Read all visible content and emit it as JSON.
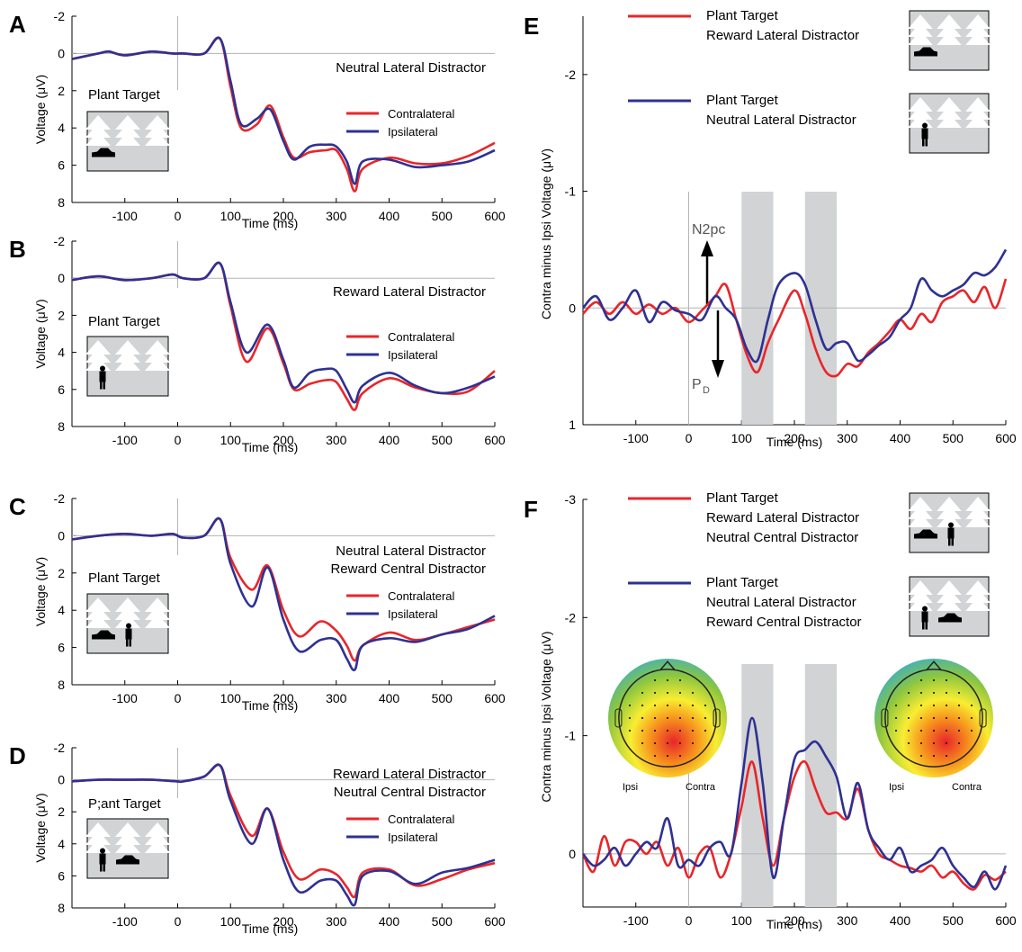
{
  "colors": {
    "contra": "#e8262a",
    "ipsi": "#2e3192",
    "shade": "#d1d3d4",
    "scene": "#d1d3d4",
    "zero": "#b3b3b3"
  },
  "left_panels": [
    {
      "letter": "A",
      "condition": [
        "Neutral Lateral Distractor"
      ],
      "target_label": "Plant Target",
      "legend": [
        "Contralateral",
        "Ipsilateral"
      ],
      "scene": "car",
      "xlabel": "Time (ms)",
      "ylabel": "Voltage (μV)",
      "yticks": [
        "-2",
        "0",
        "2",
        "4",
        "6",
        "8"
      ],
      "xticks": [
        "-100",
        "0",
        "100",
        "200",
        "300",
        "400",
        "500",
        "600"
      ]
    },
    {
      "letter": "B",
      "condition": [
        "Reward Lateral Distractor"
      ],
      "target_label": "Plant Target",
      "legend": [
        "Contralateral",
        "Ipsilateral"
      ],
      "scene": "person",
      "xlabel": "Time (ms)",
      "ylabel": "Voltage (μV)",
      "yticks": [
        "-2",
        "0",
        "2",
        "4",
        "6",
        "8"
      ],
      "xticks": [
        "-100",
        "0",
        "100",
        "200",
        "300",
        "400",
        "500",
        "600"
      ]
    },
    {
      "letter": "C",
      "condition": [
        "Neutral Lateral Distractor",
        "Reward Central Distractor"
      ],
      "target_label": "Plant Target",
      "legend": [
        "Contralateral",
        "Ipsilateral"
      ],
      "scene": "car-person",
      "xlabel": "Time (ms)",
      "ylabel": "Voltage (μV)",
      "yticks": [
        "-2",
        "0",
        "2",
        "4",
        "6",
        "8"
      ],
      "xticks": [
        "-100",
        "0",
        "100",
        "200",
        "300",
        "400",
        "500",
        "600"
      ]
    },
    {
      "letter": "D",
      "condition": [
        "Reward Lateral Distractor",
        "Neutral Central Distractor"
      ],
      "target_label": "P;ant Target",
      "legend": [
        "Contralateral",
        "Ipsilateral"
      ],
      "scene": "person-car",
      "xlabel": "Time (ms)",
      "ylabel": "Voltage (μV)",
      "yticks": [
        "-2",
        "0",
        "2",
        "4",
        "6",
        "8"
      ],
      "xticks": [
        "-100",
        "0",
        "100",
        "200",
        "300",
        "400",
        "500",
        "600"
      ]
    }
  ],
  "right_panels": [
    {
      "letter": "E",
      "ylabel": "Contra minus Ipsi Voltage (μV)",
      "xlabel": "Time (ms)",
      "yticks": [
        "-2",
        "-1",
        "0",
        "1"
      ],
      "xticks": [
        "-100",
        "0",
        "100",
        "200",
        "300",
        "400",
        "500",
        "600"
      ],
      "legend": [
        {
          "lines": [
            "Plant Target",
            "Reward Lateral Distractor"
          ],
          "scene": "car"
        },
        {
          "lines": [
            "Plant Target",
            "Neutral Lateral Distractor"
          ],
          "scene": "person"
        }
      ],
      "annot_up": "N2pc",
      "annot_down": "P",
      "annot_down_sub": "D"
    },
    {
      "letter": "F",
      "ylabel": "Contra minus Ipsi Voltage (μV)",
      "xlabel": "Time (ms)",
      "yticks": [
        "-3",
        "-2",
        "-1",
        "0"
      ],
      "xticks": [
        "-100",
        "0",
        "100",
        "200",
        "300",
        "400",
        "500",
        "600"
      ],
      "legend": [
        {
          "lines": [
            "Plant Target",
            "Reward Lateral Distractor",
            "Neutral Central Distractor"
          ],
          "scene": "car-person"
        },
        {
          "lines": [
            "Plant Target",
            "Neutral Lateral Distractor",
            "Reward Central Distractor"
          ],
          "scene": "person-car"
        }
      ],
      "topo_labels": [
        "Ipsi",
        "Contra"
      ]
    }
  ],
  "chart_data": [
    {
      "type": "line",
      "panel": "A",
      "xlim": [
        -200,
        600
      ],
      "ylim": [
        -2,
        8
      ],
      "y_inverted": true,
      "series": [
        {
          "name": "Contralateral",
          "x": [
            -200,
            -150,
            -130,
            -100,
            -50,
            -10,
            10,
            50,
            80,
            100,
            120,
            150,
            175,
            200,
            220,
            250,
            280,
            300,
            320,
            335,
            350,
            400,
            450,
            500,
            550,
            600
          ],
          "y": [
            0.3,
            0.0,
            -0.1,
            0.1,
            -0.1,
            0.0,
            0.0,
            0.0,
            -0.8,
            1.8,
            4.0,
            3.8,
            2.8,
            4.5,
            5.6,
            5.3,
            5.2,
            5.2,
            6.2,
            7.4,
            6.2,
            5.6,
            5.9,
            5.9,
            5.5,
            4.8
          ]
        },
        {
          "name": "Ipsilateral",
          "x": [
            -200,
            -150,
            -130,
            -100,
            -50,
            -10,
            10,
            50,
            80,
            100,
            120,
            150,
            175,
            200,
            220,
            250,
            280,
            300,
            320,
            335,
            350,
            400,
            450,
            500,
            550,
            600
          ],
          "y": [
            0.3,
            0.0,
            -0.1,
            0.1,
            -0.1,
            0.0,
            0.0,
            0.0,
            -0.8,
            1.5,
            3.8,
            3.5,
            3.0,
            4.7,
            5.7,
            5.0,
            4.9,
            5.0,
            5.8,
            7.0,
            5.8,
            5.7,
            6.1,
            6.0,
            5.8,
            5.2
          ]
        }
      ]
    },
    {
      "type": "line",
      "panel": "B",
      "xlim": [
        -200,
        600
      ],
      "ylim": [
        -2,
        8
      ],
      "y_inverted": true,
      "series": [
        {
          "name": "Contralateral",
          "x": [
            -200,
            -150,
            -100,
            -50,
            -10,
            10,
            50,
            80,
            100,
            130,
            170,
            200,
            220,
            250,
            280,
            300,
            320,
            335,
            350,
            400,
            450,
            500,
            550,
            600
          ],
          "y": [
            0.1,
            -0.1,
            0.1,
            0.0,
            -0.2,
            0.0,
            0.0,
            -0.8,
            1.5,
            4.5,
            2.7,
            4.6,
            6.0,
            5.7,
            5.5,
            5.6,
            6.5,
            7.1,
            6.2,
            5.4,
            5.9,
            6.2,
            6.1,
            5.0
          ]
        },
        {
          "name": "Ipsilateral",
          "x": [
            -200,
            -150,
            -100,
            -50,
            -10,
            10,
            50,
            80,
            100,
            130,
            170,
            200,
            220,
            250,
            280,
            300,
            320,
            335,
            350,
            400,
            450,
            500,
            550,
            600
          ],
          "y": [
            0.1,
            -0.1,
            0.1,
            0.0,
            -0.2,
            0.0,
            0.0,
            -0.8,
            1.3,
            4.0,
            2.5,
            4.4,
            5.9,
            5.1,
            4.9,
            5.0,
            6.0,
            6.7,
            5.8,
            5.1,
            5.8,
            6.2,
            5.9,
            5.3
          ]
        }
      ]
    },
    {
      "type": "line",
      "panel": "C",
      "xlim": [
        -200,
        600
      ],
      "ylim": [
        -2,
        8
      ],
      "y_inverted": true,
      "series": [
        {
          "name": "Contralateral",
          "x": [
            -200,
            -150,
            -100,
            -50,
            -10,
            10,
            50,
            80,
            100,
            140,
            170,
            200,
            230,
            270,
            300,
            320,
            335,
            350,
            400,
            450,
            500,
            550,
            600
          ],
          "y": [
            0.2,
            0.0,
            -0.1,
            0.0,
            -0.1,
            0.1,
            0.0,
            -0.9,
            1.2,
            2.9,
            1.6,
            4.0,
            5.4,
            4.6,
            5.1,
            5.9,
            6.7,
            5.9,
            5.2,
            5.6,
            5.3,
            4.9,
            4.5
          ]
        },
        {
          "name": "Ipsilateral",
          "x": [
            -200,
            -150,
            -100,
            -50,
            -10,
            10,
            50,
            80,
            100,
            140,
            170,
            200,
            230,
            270,
            300,
            320,
            335,
            350,
            400,
            450,
            500,
            550,
            600
          ],
          "y": [
            0.2,
            0.0,
            -0.1,
            0.0,
            -0.1,
            0.1,
            0.0,
            -0.9,
            1.5,
            3.8,
            1.7,
            4.5,
            6.2,
            5.6,
            5.6,
            6.6,
            7.2,
            5.9,
            5.5,
            5.7,
            5.3,
            5.0,
            4.3
          ]
        }
      ]
    },
    {
      "type": "line",
      "panel": "D",
      "xlim": [
        -200,
        600
      ],
      "ylim": [
        -2,
        8
      ],
      "y_inverted": true,
      "series": [
        {
          "name": "Contralateral",
          "x": [
            -200,
            -150,
            -100,
            -50,
            0,
            10,
            50,
            80,
            100,
            140,
            170,
            200,
            230,
            270,
            300,
            320,
            335,
            350,
            400,
            450,
            500,
            550,
            600
          ],
          "y": [
            0.1,
            0.0,
            0.0,
            0.0,
            0.1,
            0.1,
            -0.2,
            -0.9,
            1.0,
            3.5,
            1.8,
            4.5,
            6.2,
            5.6,
            5.9,
            6.7,
            7.3,
            5.8,
            5.6,
            6.6,
            6.2,
            5.6,
            5.2
          ]
        },
        {
          "name": "Ipsilateral",
          "x": [
            -200,
            -150,
            -100,
            -50,
            0,
            10,
            50,
            80,
            100,
            140,
            170,
            200,
            230,
            270,
            300,
            320,
            335,
            350,
            400,
            450,
            500,
            550,
            600
          ],
          "y": [
            0.1,
            0.0,
            0.0,
            0.0,
            0.1,
            0.1,
            -0.2,
            -0.9,
            1.3,
            4.0,
            1.8,
            5.0,
            7.0,
            6.3,
            6.3,
            7.2,
            7.8,
            6.0,
            5.7,
            6.5,
            5.8,
            5.5,
            5.0
          ]
        }
      ]
    },
    {
      "type": "line",
      "panel": "E",
      "xlim": [
        -200,
        600
      ],
      "ylim": [
        -2.5,
        1
      ],
      "y_inverted": true,
      "shaded_windows_ms": [
        [
          100,
          160
        ],
        [
          220,
          280
        ]
      ],
      "series": [
        {
          "name": "Plant Target / Reward Lateral Distractor",
          "x": [
            -200,
            -175,
            -150,
            -125,
            -100,
            -75,
            -50,
            -25,
            0,
            25,
            50,
            70,
            90,
            110,
            130,
            150,
            170,
            200,
            220,
            240,
            260,
            280,
            300,
            320,
            340,
            360,
            380,
            400,
            420,
            440,
            460,
            480,
            500,
            520,
            540,
            560,
            580,
            600
          ],
          "y": [
            0.05,
            -0.05,
            0.05,
            -0.05,
            0.05,
            -0.03,
            0.05,
            0.0,
            0.12,
            0.02,
            -0.1,
            -0.2,
            0.1,
            0.4,
            0.55,
            0.3,
            0.1,
            -0.15,
            0.05,
            0.35,
            0.55,
            0.58,
            0.48,
            0.5,
            0.38,
            0.3,
            0.2,
            0.1,
            0.18,
            0.05,
            0.12,
            -0.05,
            -0.1,
            -0.15,
            -0.05,
            -0.18,
            0.0,
            -0.25
          ]
        },
        {
          "name": "Plant Target / Neutral Lateral Distractor",
          "x": [
            -200,
            -175,
            -150,
            -125,
            -100,
            -75,
            -50,
            -25,
            0,
            25,
            50,
            70,
            90,
            110,
            130,
            150,
            170,
            200,
            220,
            240,
            260,
            280,
            300,
            320,
            340,
            360,
            380,
            400,
            420,
            440,
            460,
            480,
            500,
            520,
            540,
            560,
            580,
            600
          ],
          "y": [
            0.0,
            -0.1,
            0.1,
            0.0,
            -0.15,
            0.12,
            -0.05,
            0.02,
            0.05,
            0.1,
            -0.1,
            0.0,
            0.1,
            0.35,
            0.45,
            0.1,
            -0.2,
            -0.3,
            -0.2,
            0.1,
            0.35,
            0.3,
            0.3,
            0.45,
            0.4,
            0.32,
            0.25,
            0.1,
            0.0,
            -0.25,
            -0.15,
            -0.1,
            -0.15,
            -0.2,
            -0.3,
            -0.28,
            -0.35,
            -0.5
          ]
        }
      ]
    },
    {
      "type": "line",
      "panel": "F",
      "xlim": [
        -200,
        600
      ],
      "ylim": [
        -3,
        0.45
      ],
      "y_inverted": true,
      "shaded_windows_ms": [
        [
          100,
          160
        ],
        [
          220,
          280
        ]
      ],
      "series": [
        {
          "name": "Plant Target / Reward Lateral Distractor / Neutral Central Distractor",
          "x": [
            -200,
            -180,
            -160,
            -140,
            -120,
            -100,
            -80,
            -60,
            -40,
            -20,
            0,
            20,
            40,
            60,
            80,
            100,
            120,
            140,
            160,
            180,
            200,
            220,
            240,
            260,
            280,
            300,
            320,
            340,
            360,
            380,
            400,
            420,
            440,
            460,
            480,
            500,
            520,
            540,
            560,
            580,
            600
          ],
          "y": [
            0.0,
            0.15,
            -0.15,
            0.1,
            -0.1,
            -0.1,
            0.0,
            -0.1,
            0.1,
            -0.05,
            0.2,
            0.0,
            -0.05,
            0.2,
            0.0,
            -0.4,
            -0.78,
            -0.3,
            0.1,
            -0.3,
            -0.65,
            -0.78,
            -0.55,
            -0.35,
            -0.35,
            -0.3,
            -0.55,
            -0.2,
            0.0,
            0.05,
            0.1,
            0.12,
            0.15,
            0.1,
            0.2,
            0.15,
            0.25,
            0.3,
            0.18,
            0.22,
            0.15
          ]
        },
        {
          "name": "Plant Target / Neutral Lateral Distractor / Reward Central Distractor",
          "x": [
            -200,
            -180,
            -160,
            -140,
            -120,
            -100,
            -80,
            -60,
            -40,
            -20,
            0,
            20,
            40,
            60,
            80,
            100,
            120,
            140,
            160,
            180,
            200,
            220,
            240,
            260,
            280,
            300,
            320,
            340,
            360,
            380,
            400,
            420,
            440,
            460,
            480,
            500,
            520,
            540,
            560,
            580,
            600
          ],
          "y": [
            0.0,
            0.1,
            0.05,
            -0.05,
            0.1,
            0.0,
            -0.1,
            -0.05,
            -0.3,
            0.1,
            0.05,
            0.1,
            -0.05,
            -0.1,
            0.0,
            -0.6,
            -1.15,
            -0.6,
            0.2,
            -0.3,
            -0.8,
            -0.88,
            -0.95,
            -0.82,
            -0.65,
            -0.3,
            -0.6,
            -0.2,
            -0.05,
            0.05,
            -0.05,
            0.15,
            0.1,
            0.05,
            -0.05,
            0.1,
            0.2,
            0.28,
            0.15,
            0.3,
            0.1
          ]
        }
      ]
    }
  ]
}
